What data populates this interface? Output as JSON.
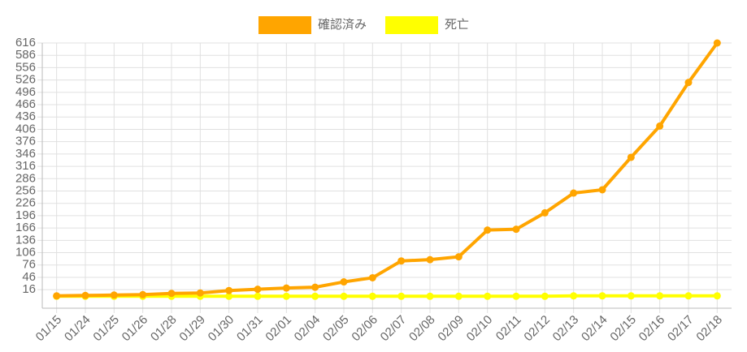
{
  "chart_data": {
    "type": "line",
    "categories": [
      "01/15",
      "01/24",
      "01/25",
      "01/26",
      "01/28",
      "01/29",
      "01/30",
      "01/31",
      "02/01",
      "02/04",
      "02/05",
      "02/06",
      "02/07",
      "02/08",
      "02/09",
      "02/10",
      "02/11",
      "02/12",
      "02/13",
      "02/14",
      "02/15",
      "02/16",
      "02/17",
      "02/18"
    ],
    "series": [
      {
        "name": "確認済み",
        "color": "#ffa500",
        "values": [
          1,
          2,
          3,
          4,
          7,
          8,
          14,
          17,
          20,
          22,
          35,
          45,
          86,
          89,
          96,
          161,
          163,
          203,
          251,
          259,
          338,
          414,
          520,
          616
        ]
      },
      {
        "name": "死亡",
        "color": "#ffff00",
        "values": [
          0,
          0,
          0,
          0,
          0,
          0,
          0,
          0,
          0,
          0,
          0,
          0,
          0,
          0,
          0,
          0,
          0,
          0,
          1,
          1,
          1,
          1,
          1,
          1
        ]
      }
    ],
    "ylim": [
      -29,
      616
    ],
    "yticks": [
      16,
      46,
      76,
      106,
      136,
      166,
      196,
      226,
      256,
      286,
      316,
      346,
      376,
      406,
      436,
      466,
      496,
      526,
      556,
      586,
      616
    ],
    "grid": true
  }
}
